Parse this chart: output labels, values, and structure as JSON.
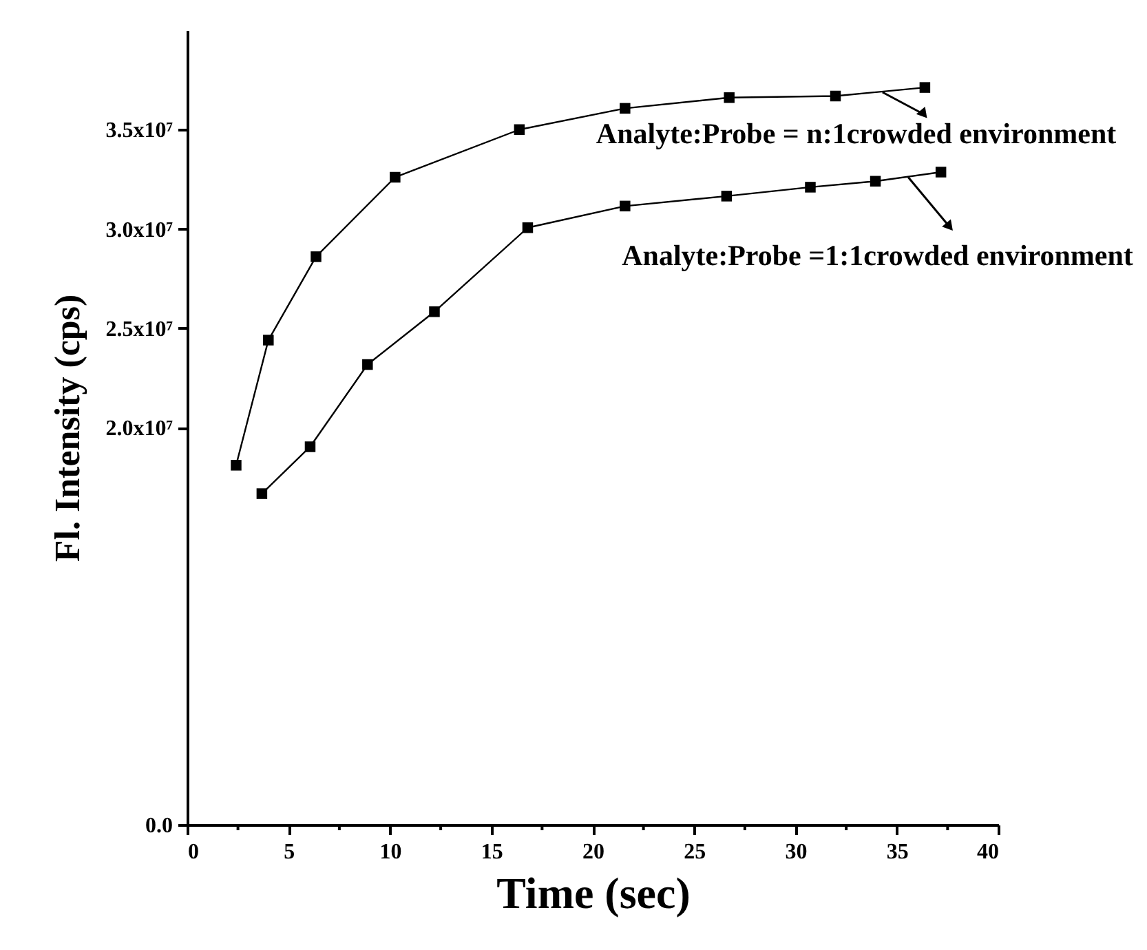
{
  "chart_data": {
    "type": "line",
    "xlabel": "Time (sec)",
    "ylabel": "Fl. Intensity (cps)",
    "series": [
      {
        "color": "#000000",
        "x": [
          2.41,
          4.0,
          6.35,
          10.25,
          16.38,
          21.59,
          26.73,
          31.97,
          36.38
        ],
        "values": [
          18100000,
          24400000,
          28600000,
          32600000,
          35000000,
          36070000,
          36610000,
          36690000,
          37120000
        ]
      },
      {
        "color": "#000000",
        "x": [
          3.68,
          6.06,
          8.89,
          12.19,
          16.79,
          21.59,
          26.6,
          30.73,
          33.94,
          37.17
        ],
        "values": [
          16670000,
          19030000,
          23170000,
          25830000,
          30060000,
          31150000,
          31650000,
          32100000,
          32400000,
          32860000
        ]
      }
    ],
    "xlim": [
      0,
      40
    ],
    "xticks": [
      0,
      {
        "value": 2.5,
        "label": null
      },
      5,
      {
        "value": 7.5,
        "label": null
      },
      10,
      {
        "value": 12.5,
        "label": null
      },
      15,
      {
        "value": 17.5,
        "label": null
      },
      20,
      {
        "value": 22.5,
        "label": null
      },
      25,
      {
        "value": 27.5,
        "label": null
      },
      30,
      {
        "value": 32.5,
        "label": null
      },
      35,
      {
        "value": 37.5,
        "label": null
      },
      40
    ],
    "ylim": [
      0,
      40000000
    ],
    "yticks": [
      {
        "value": 0,
        "label": "0.0"
      },
      {
        "value": 20000000,
        "label": "2.0x10⁷"
      },
      {
        "value": 25000000,
        "label": "2.5x10⁷"
      },
      {
        "value": 30000000,
        "label": "3.0x10⁷"
      },
      {
        "value": 35000000,
        "label": "3.5x10⁷"
      }
    ],
    "annotations": [
      {
        "text": "Analyte:Probe = n:1crowded environment",
        "x": 34.29,
        "y": 36880000
      },
      {
        "text": "Analyte:Probe =1:1crowded environment",
        "x": 35.56,
        "y": 32600000
      }
    ],
    "marker": "square",
    "line_style": "solid",
    "grid": false,
    "legend": false
  }
}
